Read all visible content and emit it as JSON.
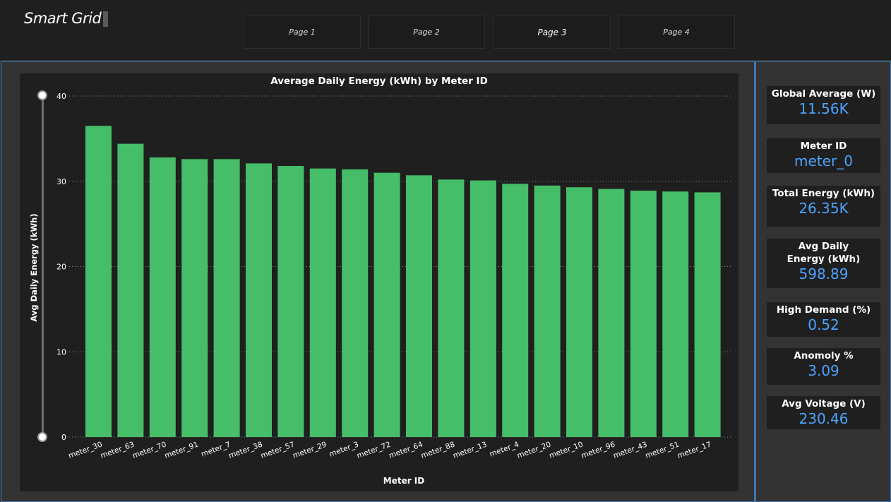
{
  "app": {
    "title": "Smart Grid"
  },
  "tabs": [
    {
      "label": "Page 1",
      "active": false
    },
    {
      "label": "Page 2",
      "active": false
    },
    {
      "label": "Page 3",
      "active": true
    },
    {
      "label": "Page 4",
      "active": false
    }
  ],
  "kpis": [
    {
      "label": "Global Average (W)",
      "value": "11.56K"
    },
    {
      "label": "Meter ID",
      "value": "meter_0"
    },
    {
      "label": "Total Energy (kWh)",
      "value": "26.35K"
    },
    {
      "label": "Avg Daily Energy (kWh)",
      "value": "598.89"
    },
    {
      "label": "High Demand (%)",
      "value": "0.52"
    },
    {
      "label": "Anomoly %",
      "value": "3.09"
    },
    {
      "label": "Avg Voltage (V)",
      "value": "230.46"
    }
  ],
  "colors": {
    "bar": "#46bd68",
    "kpi_value": "#4ba3ff",
    "accent_border": "#3e78b5"
  },
  "chart_data": {
    "type": "bar",
    "title": "Average Daily Energy (kWh) by Meter ID",
    "xlabel": "Meter ID",
    "ylabel": "Avg Daily Energy (kWh)",
    "ylim": [
      0,
      40
    ],
    "yticks": [
      0,
      10,
      20,
      30,
      40
    ],
    "grid": true,
    "categories": [
      "meter_30",
      "meter_63",
      "meter_70",
      "meter_91",
      "meter_7",
      "meter_38",
      "meter_57",
      "meter_29",
      "meter_3",
      "meter_72",
      "meter_64",
      "meter_88",
      "meter_13",
      "meter_4",
      "meter_20",
      "meter_10",
      "meter_96",
      "meter_43",
      "meter_51",
      "meter_17"
    ],
    "values": [
      36.5,
      34.4,
      32.8,
      32.6,
      32.6,
      32.1,
      31.8,
      31.5,
      31.4,
      31.0,
      30.7,
      30.2,
      30.1,
      29.7,
      29.5,
      29.3,
      29.1,
      28.9,
      28.8,
      28.7
    ]
  }
}
